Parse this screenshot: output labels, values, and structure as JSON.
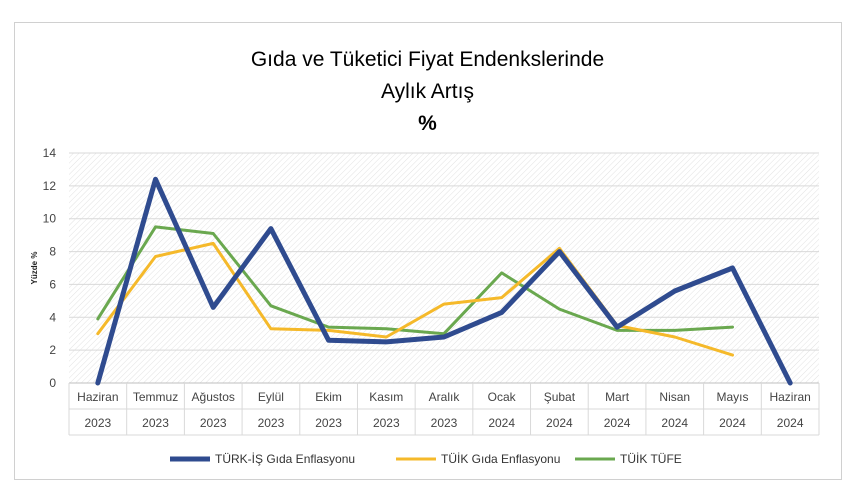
{
  "chart_data": {
    "type": "line",
    "title_lines": [
      "Gıda ve Tüketici Fiyat Endenkslerinde",
      "Aylık Artış",
      "%"
    ],
    "ylabel": "Yüzde %",
    "xlabel": "",
    "ylim": [
      0,
      14
    ],
    "yticks": [
      0,
      2,
      4,
      6,
      8,
      10,
      12,
      14
    ],
    "categories_month": [
      "Haziran",
      "Temmuz",
      "Ağustos",
      "Eylül",
      "Ekim",
      "Kasım",
      "Aralık",
      "Ocak",
      "Şubat",
      "Mart",
      "Nisan",
      "Mayıs",
      "Haziran"
    ],
    "categories_year": [
      "2023",
      "2023",
      "2023",
      "2023",
      "2023",
      "2023",
      "2023",
      "2024",
      "2024",
      "2024",
      "2024",
      "2024",
      "2024"
    ],
    "grid": "horizontal, hatched plot area",
    "legend_position": "bottom",
    "series": [
      {
        "name": "TÜRK-İŞ Gıda Enflasyonu",
        "color": "#2f4b8f",
        "width": 5,
        "values": [
          0,
          12.4,
          4.6,
          9.4,
          2.6,
          2.5,
          2.8,
          4.3,
          8.0,
          3.4,
          5.6,
          7.0,
          0
        ]
      },
      {
        "name": "TÜİK Gıda Enflasyonu",
        "color": "#f5b92a",
        "width": 3,
        "values": [
          3.0,
          7.7,
          8.5,
          3.3,
          3.2,
          2.8,
          4.8,
          5.2,
          8.2,
          3.5,
          2.8,
          1.7,
          null
        ]
      },
      {
        "name": "TÜİK TÜFE",
        "color": "#6aa84f",
        "width": 3,
        "values": [
          3.9,
          9.5,
          9.1,
          4.7,
          3.4,
          3.3,
          3.0,
          6.7,
          4.5,
          3.2,
          3.2,
          3.4,
          null
        ]
      }
    ]
  }
}
